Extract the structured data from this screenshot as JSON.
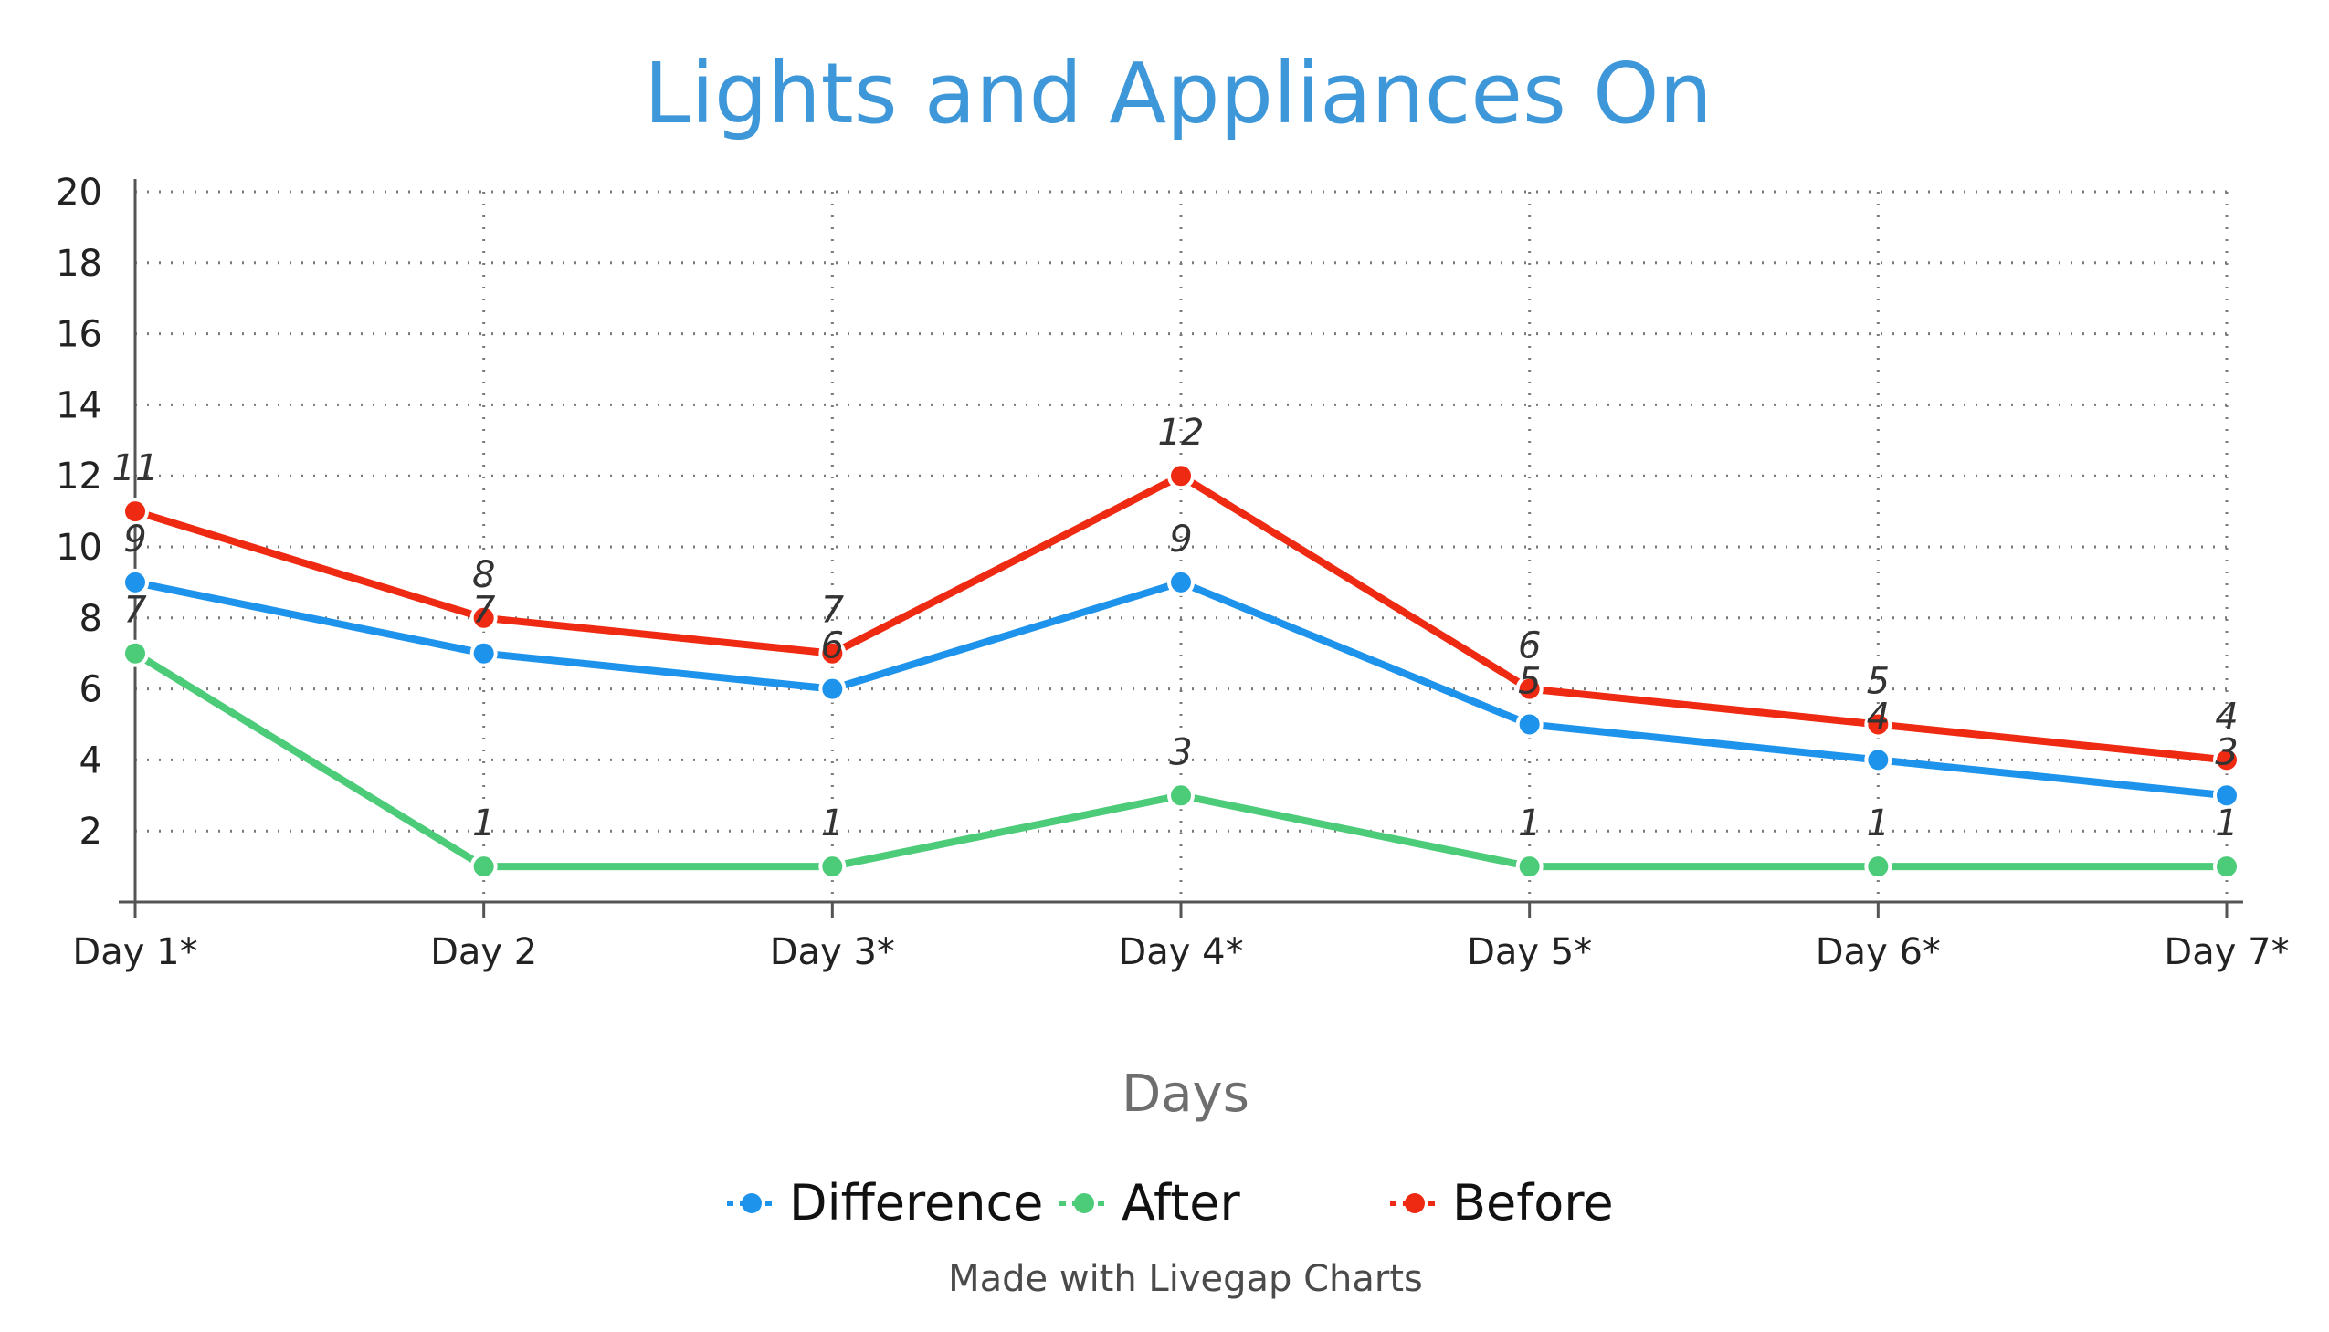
{
  "chart_data": {
    "type": "line",
    "title": "Lights and Appliances On",
    "xlabel": "Days",
    "ylabel": "",
    "categories": [
      "Day 1*",
      "Day 2",
      "Day 3*",
      "Day 4*",
      "Day 5*",
      "Day 6*",
      "Day 7*"
    ],
    "ylim": [
      0,
      20
    ],
    "yticks": [
      2,
      4,
      6,
      8,
      10,
      12,
      14,
      16,
      18,
      20
    ],
    "grid": true,
    "legend_position": "bottom",
    "series": [
      {
        "name": "Difference",
        "color": "#1e93ec",
        "values": [
          9,
          7,
          6,
          9,
          5,
          4,
          3
        ],
        "labels": [
          "9",
          "7",
          "6",
          "9",
          "5",
          "4",
          "3"
        ]
      },
      {
        "name": "After",
        "color": "#4ccb79",
        "values": [
          7,
          1,
          1,
          3,
          1,
          1,
          1
        ],
        "labels": [
          "7",
          "1",
          "1",
          "3",
          "1",
          "1",
          "1"
        ]
      },
      {
        "name": "Before",
        "color": "#ef2a12",
        "values": [
          11,
          8,
          7,
          12,
          6,
          5,
          4
        ],
        "labels": [
          "11",
          "8",
          "7",
          "12",
          "6",
          "5",
          "4"
        ]
      }
    ]
  },
  "footer": {
    "credit": "Made with Livegap Charts"
  }
}
